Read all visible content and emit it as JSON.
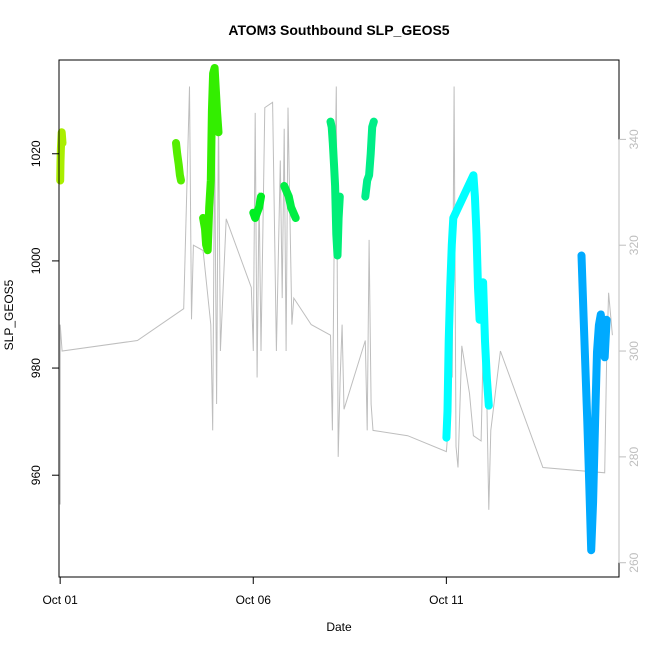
{
  "chart_data": {
    "type": "scatter",
    "title": "ATOM3 Southbound SLP_GEOS5",
    "xlabel": "Date",
    "ylabel": "SLP_GEOS5",
    "x_ticks": [
      "Oct 01",
      "Oct 06",
      "Oct 11"
    ],
    "x_tick_days": [
      1,
      6,
      11
    ],
    "xlim": [
      0.97,
      15.47
    ],
    "ylim": [
      941.0,
      1037.5
    ],
    "y_ticks": [
      960,
      980,
      1000,
      1020
    ],
    "right_axis": {
      "ylim": [
        257.3,
        355.0
      ],
      "ticks": [
        260,
        280,
        300,
        320,
        340
      ],
      "color": "#bebebe"
    },
    "grid": false,
    "background_series": {
      "color": "#bebebe",
      "axis": "right",
      "points": [
        [
          1.0,
          271
        ],
        [
          1.0,
          305
        ],
        [
          1.05,
          300
        ],
        [
          3.0,
          302
        ],
        [
          4.2,
          308
        ],
        [
          4.35,
          350
        ],
        [
          4.4,
          306
        ],
        [
          4.45,
          320
        ],
        [
          4.7,
          319
        ],
        [
          4.9,
          305
        ],
        [
          4.95,
          285
        ],
        [
          5.0,
          340
        ],
        [
          5.05,
          290
        ],
        [
          5.1,
          345
        ],
        [
          5.15,
          300
        ],
        [
          5.3,
          325
        ],
        [
          5.95,
          312
        ],
        [
          6.0,
          300
        ],
        [
          6.05,
          345
        ],
        [
          6.1,
          295
        ],
        [
          6.15,
          330
        ],
        [
          6.2,
          300
        ],
        [
          6.3,
          346
        ],
        [
          6.5,
          347
        ],
        [
          6.6,
          300
        ],
        [
          6.7,
          336
        ],
        [
          6.75,
          310
        ],
        [
          6.8,
          342
        ],
        [
          6.85,
          300
        ],
        [
          6.9,
          346
        ],
        [
          7.0,
          305
        ],
        [
          7.05,
          310
        ],
        [
          7.5,
          305
        ],
        [
          8.0,
          303
        ],
        [
          8.05,
          285
        ],
        [
          8.1,
          325
        ],
        [
          8.15,
          350
        ],
        [
          8.2,
          280
        ],
        [
          8.25,
          295
        ],
        [
          8.3,
          305
        ],
        [
          8.35,
          289
        ],
        [
          8.9,
          302
        ],
        [
          8.95,
          285
        ],
        [
          9.0,
          321
        ],
        [
          9.05,
          290
        ],
        [
          9.1,
          285
        ],
        [
          10.0,
          284
        ],
        [
          11.0,
          281
        ],
        [
          11.05,
          286
        ],
        [
          11.1,
          325
        ],
        [
          11.15,
          295
        ],
        [
          11.2,
          350
        ],
        [
          11.25,
          282
        ],
        [
          11.3,
          278
        ],
        [
          11.4,
          301
        ],
        [
          11.6,
          292
        ],
        [
          11.7,
          284
        ],
        [
          11.9,
          283
        ],
        [
          11.95,
          300
        ],
        [
          12.0,
          310
        ],
        [
          12.05,
          290
        ],
        [
          12.1,
          270
        ],
        [
          12.15,
          285
        ],
        [
          12.4,
          300
        ],
        [
          13.5,
          278
        ],
        [
          15.1,
          277
        ],
        [
          15.15,
          298
        ],
        [
          15.2,
          311
        ],
        [
          15.3,
          303
        ]
      ]
    },
    "series": [
      {
        "color": "#aaee00",
        "values": [
          [
            1.0,
            1015
          ],
          [
            1.01,
            1018.5
          ],
          [
            1.02,
            1021
          ],
          [
            1.04,
            1024
          ],
          [
            1.06,
            1022
          ]
        ]
      },
      {
        "color": "#55ee00",
        "values": [
          [
            4.0,
            1022
          ],
          [
            4.03,
            1020
          ],
          [
            4.07,
            1018
          ],
          [
            4.1,
            1016
          ],
          [
            4.13,
            1015
          ]
        ]
      },
      {
        "color": "#33ee00",
        "values": [
          [
            4.7,
            1008
          ],
          [
            4.75,
            1006
          ],
          [
            4.78,
            1003
          ],
          [
            4.82,
            1002
          ],
          [
            4.86,
            1010
          ],
          [
            4.9,
            1015
          ],
          [
            4.93,
            1028
          ],
          [
            4.96,
            1035
          ],
          [
            5.0,
            1036
          ],
          [
            5.03,
            1032
          ],
          [
            5.06,
            1028
          ],
          [
            5.1,
            1024
          ]
        ]
      },
      {
        "color": "#00ee22",
        "values": [
          [
            6.0,
            1009
          ],
          [
            6.05,
            1008
          ],
          [
            6.1,
            1009
          ],
          [
            6.15,
            1010
          ],
          [
            6.2,
            1012
          ]
        ]
      },
      {
        "color": "#00ee44",
        "values": [
          [
            6.8,
            1014
          ],
          [
            6.86,
            1013
          ],
          [
            6.92,
            1012
          ],
          [
            6.98,
            1010
          ],
          [
            7.04,
            1009
          ],
          [
            7.1,
            1008
          ]
        ]
      },
      {
        "color": "#00ee77",
        "values": [
          [
            8.0,
            1026
          ],
          [
            8.03,
            1025
          ],
          [
            8.06,
            1022
          ],
          [
            8.09,
            1018
          ],
          [
            8.12,
            1014
          ],
          [
            8.15,
            1005
          ],
          [
            8.18,
            1001
          ],
          [
            8.21,
            1008
          ],
          [
            8.24,
            1012
          ]
        ]
      },
      {
        "color": "#00ee88",
        "values": [
          [
            8.9,
            1012
          ],
          [
            8.95,
            1015
          ],
          [
            9.0,
            1016
          ],
          [
            9.04,
            1020
          ],
          [
            9.08,
            1025
          ],
          [
            9.12,
            1026
          ]
        ]
      },
      {
        "color": "#00ffff",
        "values": [
          [
            11.0,
            967
          ],
          [
            11.03,
            972
          ],
          [
            11.06,
            985
          ],
          [
            11.1,
            995
          ],
          [
            11.14,
            1003
          ],
          [
            11.18,
            1008
          ],
          [
            11.7,
            1016
          ],
          [
            11.74,
            1012
          ],
          [
            11.78,
            1005
          ],
          [
            11.82,
            995
          ],
          [
            11.86,
            989
          ],
          [
            11.9,
            993
          ],
          [
            11.95,
            996
          ],
          [
            12.0,
            985
          ],
          [
            12.05,
            978
          ],
          [
            12.1,
            973
          ]
        ]
      },
      {
        "color": "#00aaff",
        "values": [
          [
            14.5,
            1001
          ],
          [
            14.55,
            990
          ],
          [
            14.6,
            980
          ],
          [
            14.65,
            970
          ],
          [
            14.7,
            958
          ],
          [
            14.75,
            946
          ],
          [
            14.8,
            955
          ],
          [
            14.85,
            970
          ],
          [
            14.9,
            983
          ],
          [
            14.95,
            988
          ],
          [
            15.0,
            990
          ],
          [
            15.05,
            986
          ],
          [
            15.1,
            982
          ],
          [
            15.15,
            989
          ]
        ]
      }
    ]
  }
}
